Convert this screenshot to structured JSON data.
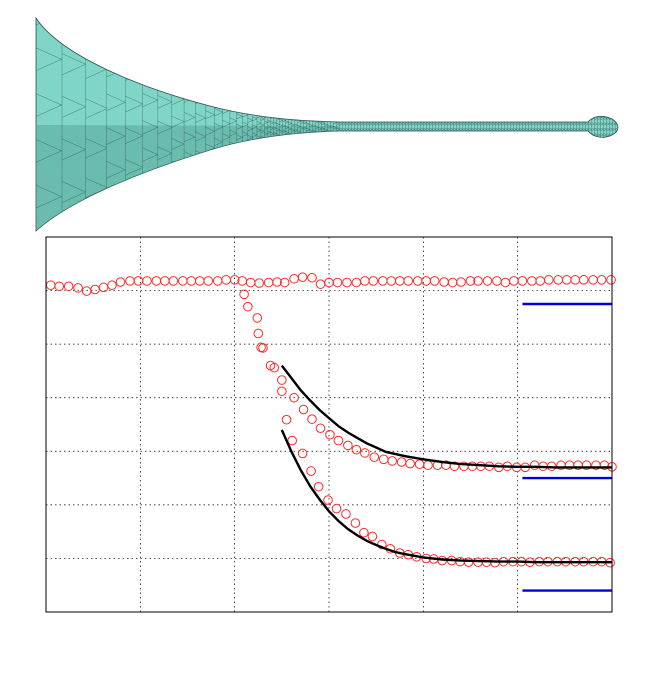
{
  "figure": {
    "mesh_panel": {
      "shape": "tapered-tube-mesh",
      "fill_color": "#7fd6c6",
      "edge_color": "#2f4f4f"
    }
  },
  "chart_data": {
    "type": "scatter",
    "title": "",
    "xlabel": "",
    "ylabel": "",
    "xlim": [
      0,
      60
    ],
    "ylim": [
      0,
      7
    ],
    "grid": true,
    "tick_labels_shown": false,
    "colors": {
      "markers": "#ff2a2a",
      "fit": "#000000",
      "reference": "#0000dd",
      "grid": "#000000"
    },
    "series": [
      {
        "marker": "open-circle",
        "x": [
          0.5,
          1.4,
          2.4,
          3.4,
          4.3,
          5.2,
          6.1,
          7.0,
          7.9,
          8.9,
          9.8,
          10.7,
          11.7,
          12.6,
          13.5,
          14.5,
          15.4,
          16.3,
          17.2,
          18.2,
          19.1,
          20.0,
          20.8,
          21.7,
          22.6,
          23.6,
          24.5,
          25.3,
          26.3,
          27.2,
          28.2,
          29.1,
          30.0,
          30.9,
          31.9,
          32.9,
          33.8,
          34.7,
          35.7,
          36.6,
          37.5,
          38.4,
          39.4,
          40.3,
          41.2,
          42.2,
          43.1,
          44.0,
          45.0,
          45.8,
          46.8,
          47.8,
          48.7,
          49.6,
          50.5,
          51.5,
          52.4,
          53.3,
          54.3,
          55.2,
          56.1,
          57.0,
          58.0,
          58.9,
          59.9
        ],
        "y": [
          6.1,
          6.08,
          6.08,
          6.05,
          5.99,
          6.02,
          6.06,
          6.1,
          6.16,
          6.18,
          6.18,
          6.18,
          6.18,
          6.18,
          6.18,
          6.18,
          6.18,
          6.18,
          6.18,
          6.18,
          6.2,
          6.2,
          6.18,
          6.15,
          6.14,
          6.15,
          6.16,
          6.15,
          6.22,
          6.25,
          6.24,
          6.12,
          6.15,
          6.15,
          6.15,
          6.15,
          6.18,
          6.18,
          6.18,
          6.18,
          6.18,
          6.18,
          6.18,
          6.18,
          6.18,
          6.16,
          6.15,
          6.16,
          6.18,
          6.18,
          6.18,
          6.18,
          6.15,
          6.18,
          6.18,
          6.18,
          6.18,
          6.2,
          6.2,
          6.2,
          6.2,
          6.2,
          6.2,
          6.2,
          6.2
        ]
      },
      {
        "marker": "open-circle",
        "x": [
          21.0,
          21.4,
          22.4,
          22.8,
          23.8,
          25.0,
          26.3,
          27.3,
          28.2,
          29.1,
          30.1,
          31.0,
          32.0,
          32.9,
          33.8,
          34.8,
          35.8,
          36.7,
          37.7,
          38.6,
          39.6,
          40.5,
          41.5,
          42.4,
          43.3,
          44.3,
          45.2,
          46.1,
          47.0,
          48.0,
          48.9,
          49.9,
          50.8,
          51.8,
          52.7,
          53.6,
          54.6,
          55.5,
          56.4,
          57.3,
          58.3,
          59.2,
          60.0
        ],
        "y": [
          5.93,
          5.7,
          5.49,
          4.94,
          4.6,
          4.33,
          4.0,
          3.78,
          3.6,
          3.43,
          3.31,
          3.2,
          3.11,
          3.03,
          2.97,
          2.89,
          2.85,
          2.82,
          2.8,
          2.77,
          2.76,
          2.74,
          2.74,
          2.74,
          2.72,
          2.72,
          2.72,
          2.72,
          2.72,
          2.7,
          2.72,
          2.7,
          2.7,
          2.74,
          2.72,
          2.72,
          2.74,
          2.74,
          2.74,
          2.74,
          2.74,
          2.74,
          2.71
        ]
      },
      {
        "marker": "open-circle",
        "x": [
          22.5,
          23.0,
          24.2,
          25.0,
          25.5,
          26.1,
          27.2,
          28.1,
          28.9,
          29.9,
          30.8,
          31.8,
          32.8,
          33.7,
          34.6,
          35.6,
          36.5,
          37.5,
          38.4,
          39.3,
          40.3,
          41.1,
          42.0,
          43.0,
          43.9,
          44.8,
          45.8,
          46.7,
          47.6,
          48.5,
          49.5,
          50.4,
          51.3,
          52.3,
          53.2,
          54.2,
          55.1,
          56.1,
          57.0,
          58.0,
          58.9,
          59.8
        ],
        "y": [
          5.2,
          4.93,
          4.56,
          4.12,
          3.59,
          3.2,
          2.96,
          2.63,
          2.34,
          2.09,
          1.93,
          1.83,
          1.66,
          1.48,
          1.41,
          1.26,
          1.18,
          1.1,
          1.07,
          1.03,
          1.0,
          0.99,
          0.96,
          0.96,
          0.94,
          0.93,
          0.93,
          0.93,
          0.92,
          0.94,
          0.94,
          0.94,
          0.93,
          0.94,
          0.94,
          0.94,
          0.94,
          0.94,
          0.94,
          0.94,
          0.94,
          0.92
        ]
      },
      {
        "marker": "line",
        "role": "fit",
        "x": [
          25,
          26,
          27,
          28,
          29,
          30,
          31,
          32,
          33,
          34,
          35,
          36,
          38,
          40,
          42,
          44,
          46,
          48,
          50,
          52,
          54,
          56,
          58,
          60
        ],
        "y": [
          4.6,
          4.37,
          4.14,
          3.95,
          3.77,
          3.62,
          3.47,
          3.35,
          3.25,
          3.15,
          3.07,
          2.99,
          2.91,
          2.85,
          2.8,
          2.76,
          2.74,
          2.72,
          2.71,
          2.71,
          2.7,
          2.7,
          2.7,
          2.7
        ]
      },
      {
        "marker": "line",
        "role": "fit",
        "x": [
          25,
          26,
          27,
          28,
          29,
          30,
          31,
          32,
          33,
          34,
          35,
          36,
          37,
          38,
          40,
          42,
          44,
          46,
          48,
          50,
          52,
          54,
          56,
          58,
          60
        ],
        "y": [
          3.4,
          3.0,
          2.65,
          2.35,
          2.1,
          1.88,
          1.7,
          1.55,
          1.43,
          1.33,
          1.25,
          1.18,
          1.12,
          1.08,
          1.02,
          0.98,
          0.96,
          0.95,
          0.94,
          0.94,
          0.93,
          0.93,
          0.93,
          0.93,
          0.93
        ]
      },
      {
        "marker": "line",
        "role": "reference",
        "x": [
          50.5,
          60.0
        ],
        "y": [
          5.75,
          5.75
        ]
      },
      {
        "marker": "line",
        "role": "reference",
        "x": [
          50.5,
          60.0
        ],
        "y": [
          2.5,
          2.5
        ]
      },
      {
        "marker": "line",
        "role": "reference",
        "x": [
          50.5,
          60.0
        ],
        "y": [
          0.4,
          0.4
        ]
      }
    ]
  }
}
